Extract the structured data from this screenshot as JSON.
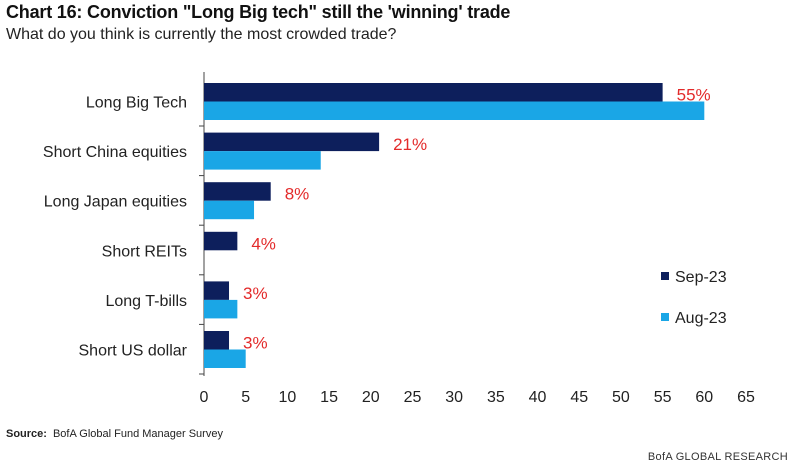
{
  "header": {
    "title": "Chart 16: Conviction \"Long Big tech\" still the 'winning' trade",
    "subtitle": "What do you think is currently the most crowded trade?"
  },
  "footer": {
    "source_label": "Source:",
    "source_text": "BofA Global Fund Manager Survey",
    "brand": "BofA GLOBAL RESEARCH"
  },
  "chart_data": {
    "type": "bar",
    "orientation": "horizontal",
    "categories": [
      "Long Big Tech",
      "Short China equities",
      "Long Japan equities",
      "Short REITs",
      "Long T-bills",
      "Short US dollar"
    ],
    "series": [
      {
        "name": "Sep-23",
        "color": "#0d1f5c",
        "values": [
          55,
          21,
          8,
          4,
          3,
          3
        ]
      },
      {
        "name": "Aug-23",
        "color": "#1aa6e6",
        "values": [
          60,
          14,
          6,
          0,
          4,
          5
        ]
      }
    ],
    "data_labels": [
      "55%",
      "21%",
      "8%",
      "4%",
      "3%",
      "3%"
    ],
    "data_label_color": "#e32a2a",
    "xlim": [
      0,
      65
    ],
    "xticks": [
      0,
      5,
      10,
      15,
      20,
      25,
      30,
      35,
      40,
      45,
      50,
      55,
      60,
      65
    ],
    "legend_position": "right",
    "grid": false
  }
}
